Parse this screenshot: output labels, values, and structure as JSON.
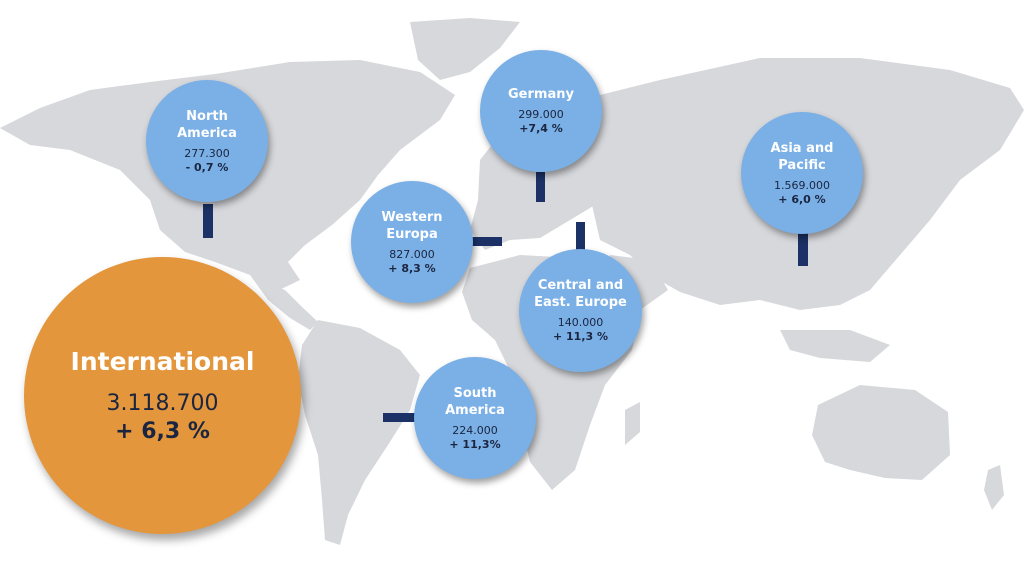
{
  "map": {
    "land_color": "#d7d8dc",
    "background": "#ffffff"
  },
  "colors": {
    "region_bubble": "#7ab0e6",
    "international_bubble": "#e3963c",
    "connector": "#1c3266",
    "label_text": "#ffffff",
    "figure_text": "#1b2540"
  },
  "international": {
    "name": "International",
    "value": "3.118.700",
    "change": "+ 6,3 %"
  },
  "regions": [
    {
      "id": "north-america",
      "name": "North\nAmerica",
      "value": "277.300",
      "change": "- 0,7 %"
    },
    {
      "id": "germany",
      "name": "Germany",
      "value": "299.000",
      "change": "+7,4 %"
    },
    {
      "id": "asia-pacific",
      "name": "Asia and\nPacific",
      "value": "1.569.000",
      "change": "+ 6,0 %"
    },
    {
      "id": "western-europa",
      "name": "Western\nEuropa",
      "value": "827.000",
      "change": "+ 8,3 %"
    },
    {
      "id": "central-east-europe",
      "name": "Central and\nEast. Europe",
      "value": "140.000",
      "change": "+ 11,3 %"
    },
    {
      "id": "south-america",
      "name": "South\nAmerica",
      "value": "224.000",
      "change": "+ 11,3%"
    }
  ]
}
